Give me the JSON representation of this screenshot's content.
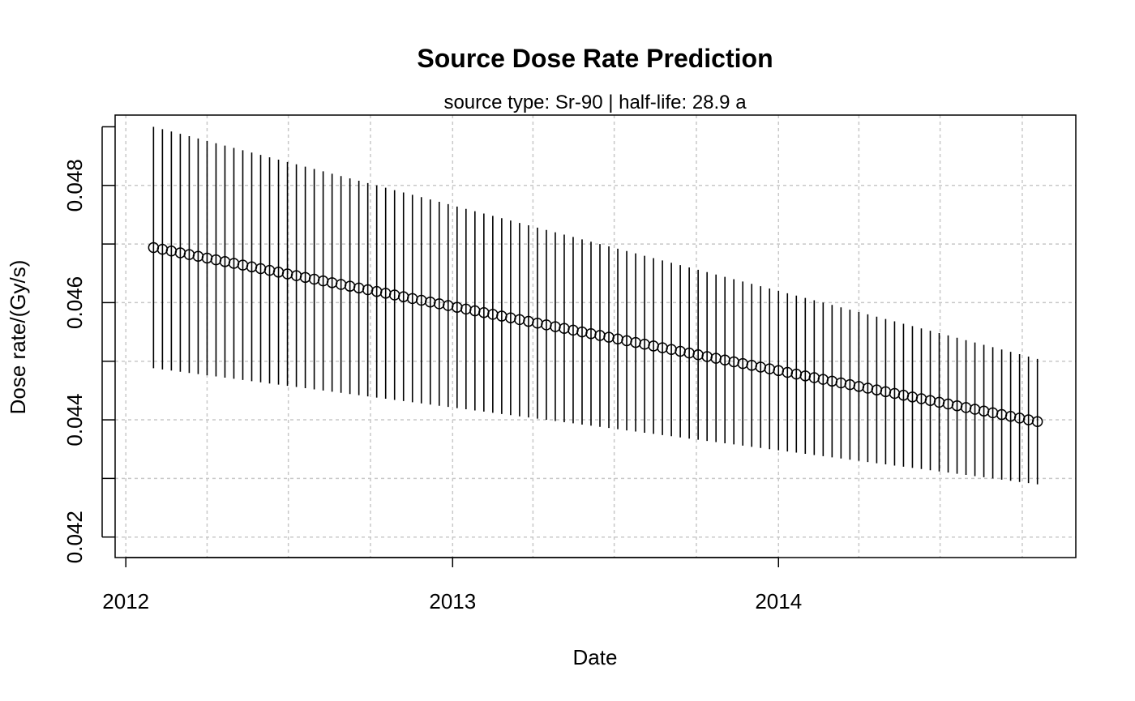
{
  "chart_data": {
    "type": "scatter",
    "title": "Source Dose Rate Prediction",
    "subtitle": "source type: Sr-90 | half-life: 28.9 a",
    "xlabel": "Date",
    "ylabel": "Dose rate/(Gy/s)",
    "x_ticks": [
      "2012",
      "2013",
      "2014"
    ],
    "y_ticks": [
      "0.042",
      "0.044",
      "0.046",
      "0.048"
    ],
    "xlim": [
      "2011-12-20",
      "2014-11-30"
    ],
    "ylim": [
      0.04165,
      0.0492
    ],
    "grid": true,
    "series": [
      {
        "x_start": "2012-02-01",
        "x_step_days": 10,
        "points": 100,
        "values": [
          0.04694,
          0.04691,
          0.04688,
          0.04685,
          0.04682,
          0.04679,
          0.04676,
          0.04673,
          0.0467,
          0.04667,
          0.04664,
          0.04661,
          0.04658,
          0.04655,
          0.04652,
          0.04649,
          0.04646,
          0.04643,
          0.0464,
          0.04637,
          0.04634,
          0.04631,
          0.04628,
          0.04625,
          0.04622,
          0.04619,
          0.04616,
          0.04613,
          0.0461,
          0.04607,
          0.04604,
          0.04601,
          0.04598,
          0.04595,
          0.04592,
          0.04589,
          0.04586,
          0.04583,
          0.0458,
          0.04577,
          0.04574,
          0.04571,
          0.04568,
          0.04565,
          0.04562,
          0.04559,
          0.04556,
          0.04553,
          0.0455,
          0.04547,
          0.04544,
          0.04541,
          0.04538,
          0.04535,
          0.04532,
          0.04529,
          0.04526,
          0.04523,
          0.0452,
          0.04517,
          0.04514,
          0.04511,
          0.04508,
          0.04505,
          0.04502,
          0.04499,
          0.04496,
          0.04493,
          0.0449,
          0.04487,
          0.04484,
          0.04481,
          0.04478,
          0.04475,
          0.04472,
          0.04469,
          0.04466,
          0.04463,
          0.0446,
          0.04457,
          0.04454,
          0.04451,
          0.04448,
          0.04445,
          0.04442,
          0.04439,
          0.04436,
          0.04433,
          0.0443,
          0.04427,
          0.04424,
          0.04421,
          0.04418,
          0.04415,
          0.04412,
          0.04409,
          0.04406,
          0.04403,
          0.044,
          0.04397
        ],
        "error_upper": [
          0.049,
          0.04896,
          0.04892,
          0.04888,
          0.04884,
          0.0488,
          0.04876,
          0.04872,
          0.04868,
          0.04864,
          0.0486,
          0.04856,
          0.04852,
          0.04848,
          0.04844,
          0.0484,
          0.04836,
          0.04832,
          0.04828,
          0.04824,
          0.0482,
          0.04816,
          0.04812,
          0.04808,
          0.04804,
          0.048,
          0.04796,
          0.04792,
          0.04788,
          0.04784,
          0.0478,
          0.04776,
          0.04772,
          0.04768,
          0.04764,
          0.0476,
          0.04756,
          0.04752,
          0.04748,
          0.04744,
          0.0474,
          0.04736,
          0.04732,
          0.04728,
          0.04724,
          0.0472,
          0.04716,
          0.04712,
          0.04708,
          0.04704,
          0.047,
          0.04696,
          0.04692,
          0.04688,
          0.04684,
          0.0468,
          0.04676,
          0.04672,
          0.04668,
          0.04664,
          0.0466,
          0.04656,
          0.04652,
          0.04648,
          0.04644,
          0.0464,
          0.04636,
          0.04632,
          0.04628,
          0.04624,
          0.0462,
          0.04616,
          0.04612,
          0.04608,
          0.04604,
          0.046,
          0.04596,
          0.04592,
          0.04588,
          0.04584,
          0.0458,
          0.04576,
          0.04572,
          0.04568,
          0.04564,
          0.0456,
          0.04556,
          0.04552,
          0.04548,
          0.04544,
          0.0454,
          0.04536,
          0.04532,
          0.04528,
          0.04524,
          0.0452,
          0.04516,
          0.04512,
          0.04508,
          0.04504
        ],
        "error_lower": [
          0.04488,
          0.04486,
          0.04484,
          0.04482,
          0.0448,
          0.04478,
          0.04476,
          0.04474,
          0.04472,
          0.0447,
          0.04468,
          0.04466,
          0.04464,
          0.04462,
          0.0446,
          0.04458,
          0.04456,
          0.04454,
          0.04452,
          0.0445,
          0.04448,
          0.04446,
          0.04444,
          0.04442,
          0.0444,
          0.04438,
          0.04436,
          0.04434,
          0.04432,
          0.0443,
          0.04428,
          0.04426,
          0.04424,
          0.04422,
          0.0442,
          0.04418,
          0.04416,
          0.04414,
          0.04412,
          0.0441,
          0.04408,
          0.04406,
          0.04404,
          0.04402,
          0.044,
          0.04398,
          0.04396,
          0.04394,
          0.04392,
          0.0439,
          0.04388,
          0.04386,
          0.04384,
          0.04382,
          0.0438,
          0.04378,
          0.04376,
          0.04374,
          0.04372,
          0.0437,
          0.04368,
          0.04366,
          0.04364,
          0.04362,
          0.0436,
          0.04358,
          0.04356,
          0.04354,
          0.04352,
          0.0435,
          0.04348,
          0.04346,
          0.04344,
          0.04342,
          0.0434,
          0.04338,
          0.04336,
          0.04334,
          0.04332,
          0.0433,
          0.04328,
          0.04326,
          0.04324,
          0.04322,
          0.0432,
          0.04318,
          0.04316,
          0.04314,
          0.04312,
          0.0431,
          0.04308,
          0.04306,
          0.04304,
          0.04302,
          0.043,
          0.04298,
          0.04296,
          0.04294,
          0.04292,
          0.0429
        ]
      }
    ]
  }
}
